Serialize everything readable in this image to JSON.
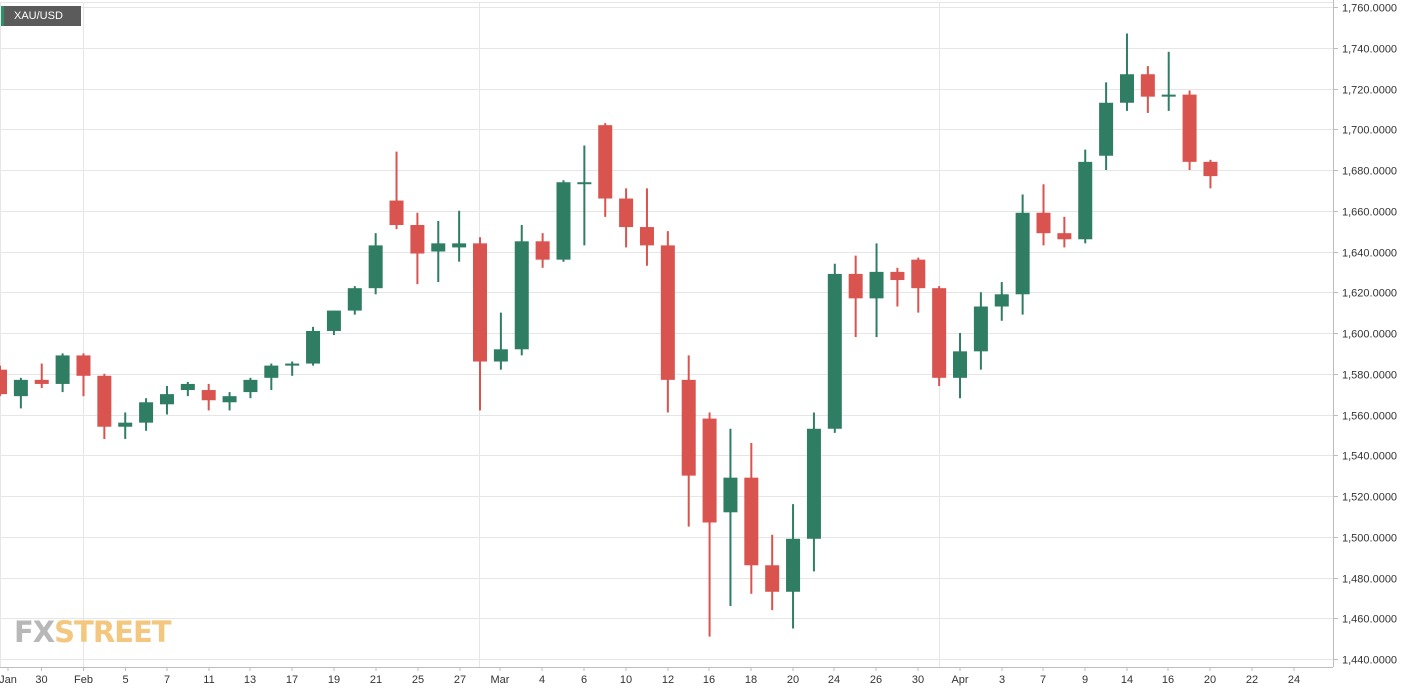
{
  "chart_data": {
    "type": "candlestick",
    "symbol": "XAU/USD",
    "ylim": [
      1440,
      1760
    ],
    "y_ticks": [
      "1,760.0000",
      "1,740.0000",
      "1,720.0000",
      "1,700.0000",
      "1,680.0000",
      "1,660.0000",
      "1,640.0000",
      "1,620.0000",
      "1,600.0000",
      "1,580.0000",
      "1,560.0000",
      "1,540.0000",
      "1,520.0000",
      "1,500.0000",
      "1,480.0000",
      "1,460.0000",
      "1,440.0000"
    ],
    "x_ticks": [
      "Jan",
      "30",
      "Feb",
      "5",
      "7",
      "11",
      "13",
      "17",
      "19",
      "21",
      "25",
      "27",
      "Mar",
      "4",
      "6",
      "10",
      "12",
      "16",
      "18",
      "20",
      "24",
      "26",
      "30",
      "Apr",
      "3",
      "7",
      "9",
      "14",
      "16",
      "20",
      "22",
      "24"
    ],
    "grid": true,
    "colors": {
      "up": "#2f7d63",
      "down": "#d9534f",
      "grid": "#e6e6e6",
      "axis": "#bdbdbd"
    },
    "candles": [
      {
        "d": "Jan 28",
        "o": 1582,
        "h": 1584,
        "l": 1569,
        "c": 1570
      },
      {
        "d": "Jan 29",
        "o": 1569,
        "h": 1578,
        "l": 1563,
        "c": 1577
      },
      {
        "d": "Jan 30",
        "o": 1577,
        "h": 1585,
        "l": 1573,
        "c": 1575
      },
      {
        "d": "Jan 31",
        "o": 1575,
        "h": 1590,
        "l": 1571,
        "c": 1589
      },
      {
        "d": "Feb 3",
        "o": 1589,
        "h": 1590,
        "l": 1569,
        "c": 1579
      },
      {
        "d": "Feb 4",
        "o": 1579,
        "h": 1580,
        "l": 1548,
        "c": 1554
      },
      {
        "d": "Feb 5",
        "o": 1554,
        "h": 1561,
        "l": 1548,
        "c": 1556
      },
      {
        "d": "Feb 6",
        "o": 1556,
        "h": 1568,
        "l": 1552,
        "c": 1566
      },
      {
        "d": "Feb 7",
        "o": 1565,
        "h": 1574,
        "l": 1560,
        "c": 1570
      },
      {
        "d": "Feb 10",
        "o": 1572,
        "h": 1576,
        "l": 1569,
        "c": 1575
      },
      {
        "d": "Feb 11",
        "o": 1572,
        "h": 1575,
        "l": 1562,
        "c": 1567
      },
      {
        "d": "Feb 12",
        "o": 1566,
        "h": 1571,
        "l": 1562,
        "c": 1569
      },
      {
        "d": "Feb 13",
        "o": 1571,
        "h": 1578,
        "l": 1568,
        "c": 1577
      },
      {
        "d": "Feb 14",
        "o": 1578,
        "h": 1585,
        "l": 1572,
        "c": 1584
      },
      {
        "d": "Feb 17",
        "o": 1584,
        "h": 1586,
        "l": 1579,
        "c": 1585
      },
      {
        "d": "Feb 18",
        "o": 1585,
        "h": 1603,
        "l": 1584,
        "c": 1601
      },
      {
        "d": "Feb 19",
        "o": 1601,
        "h": 1611,
        "l": 1599,
        "c": 1611
      },
      {
        "d": "Feb 20",
        "o": 1611,
        "h": 1623,
        "l": 1609,
        "c": 1622
      },
      {
        "d": "Feb 21",
        "o": 1622,
        "h": 1649,
        "l": 1619,
        "c": 1643
      },
      {
        "d": "Feb 24",
        "o": 1665,
        "h": 1689,
        "l": 1651,
        "c": 1653
      },
      {
        "d": "Feb 25",
        "o": 1653,
        "h": 1659,
        "l": 1624,
        "c": 1639
      },
      {
        "d": "Feb 26",
        "o": 1640,
        "h": 1655,
        "l": 1625,
        "c": 1644
      },
      {
        "d": "Feb 27",
        "o": 1642,
        "h": 1660,
        "l": 1635,
        "c": 1644
      },
      {
        "d": "Feb 28",
        "o": 1644,
        "h": 1647,
        "l": 1562,
        "c": 1586
      },
      {
        "d": "Mar 2",
        "o": 1586,
        "h": 1610,
        "l": 1582,
        "c": 1592
      },
      {
        "d": "Mar 3",
        "o": 1592,
        "h": 1653,
        "l": 1589,
        "c": 1645
      },
      {
        "d": "Mar 4",
        "o": 1645,
        "h": 1649,
        "l": 1632,
        "c": 1636
      },
      {
        "d": "Mar 5",
        "o": 1636,
        "h": 1675,
        "l": 1635,
        "c": 1674
      },
      {
        "d": "Mar 6",
        "o": 1674,
        "h": 1692,
        "l": 1643,
        "c": 1674
      },
      {
        "d": "Mar 9",
        "o": 1702,
        "h": 1703,
        "l": 1657,
        "c": 1666
      },
      {
        "d": "Mar 10",
        "o": 1666,
        "h": 1671,
        "l": 1642,
        "c": 1652
      },
      {
        "d": "Mar 11",
        "o": 1652,
        "h": 1671,
        "l": 1633,
        "c": 1643
      },
      {
        "d": "Mar 12",
        "o": 1643,
        "h": 1650,
        "l": 1561,
        "c": 1577
      },
      {
        "d": "Mar 13",
        "o": 1577,
        "h": 1589,
        "l": 1505,
        "c": 1530
      },
      {
        "d": "Mar 16",
        "o": 1558,
        "h": 1561,
        "l": 1451,
        "c": 1507
      },
      {
        "d": "Mar 17",
        "o": 1512,
        "h": 1553,
        "l": 1466,
        "c": 1529
      },
      {
        "d": "Mar 18",
        "o": 1529,
        "h": 1546,
        "l": 1472,
        "c": 1486
      },
      {
        "d": "Mar 19",
        "o": 1486,
        "h": 1501,
        "l": 1464,
        "c": 1473
      },
      {
        "d": "Mar 20",
        "o": 1473,
        "h": 1516,
        "l": 1455,
        "c": 1499
      },
      {
        "d": "Mar 23",
        "o": 1499,
        "h": 1561,
        "l": 1483,
        "c": 1553
      },
      {
        "d": "Mar 24",
        "o": 1553,
        "h": 1634,
        "l": 1551,
        "c": 1629
      },
      {
        "d": "Mar 25",
        "o": 1629,
        "h": 1638,
        "l": 1598,
        "c": 1617
      },
      {
        "d": "Mar 26",
        "o": 1617,
        "h": 1644,
        "l": 1598,
        "c": 1630
      },
      {
        "d": "Mar 27",
        "o": 1630,
        "h": 1632,
        "l": 1613,
        "c": 1626
      },
      {
        "d": "Mar 30",
        "o": 1636,
        "h": 1637,
        "l": 1610,
        "c": 1622
      },
      {
        "d": "Mar 31",
        "o": 1622,
        "h": 1623,
        "l": 1574,
        "c": 1578
      },
      {
        "d": "Apr 1",
        "o": 1578,
        "h": 1600,
        "l": 1568,
        "c": 1591
      },
      {
        "d": "Apr 2",
        "o": 1591,
        "h": 1620,
        "l": 1582,
        "c": 1613
      },
      {
        "d": "Apr 3",
        "o": 1613,
        "h": 1625,
        "l": 1606,
        "c": 1619
      },
      {
        "d": "Apr 6",
        "o": 1619,
        "h": 1668,
        "l": 1609,
        "c": 1659
      },
      {
        "d": "Apr 7",
        "o": 1659,
        "h": 1673,
        "l": 1643,
        "c": 1649
      },
      {
        "d": "Apr 8",
        "o": 1649,
        "h": 1657,
        "l": 1642,
        "c": 1646
      },
      {
        "d": "Apr 9",
        "o": 1646,
        "h": 1690,
        "l": 1644,
        "c": 1684
      },
      {
        "d": "Apr 13",
        "o": 1687,
        "h": 1723,
        "l": 1680,
        "c": 1713
      },
      {
        "d": "Apr 14",
        "o": 1713,
        "h": 1747,
        "l": 1709,
        "c": 1727
      },
      {
        "d": "Apr 15",
        "o": 1727,
        "h": 1731,
        "l": 1708,
        "c": 1716
      },
      {
        "d": "Apr 16",
        "o": 1716,
        "h": 1738,
        "l": 1709,
        "c": 1717
      },
      {
        "d": "Apr 17",
        "o": 1717,
        "h": 1719,
        "l": 1680,
        "c": 1684
      },
      {
        "d": "Apr 20",
        "o": 1684,
        "h": 1685,
        "l": 1671,
        "c": 1677
      }
    ]
  },
  "watermark": {
    "part1": "FX",
    "part2": "STREET"
  }
}
